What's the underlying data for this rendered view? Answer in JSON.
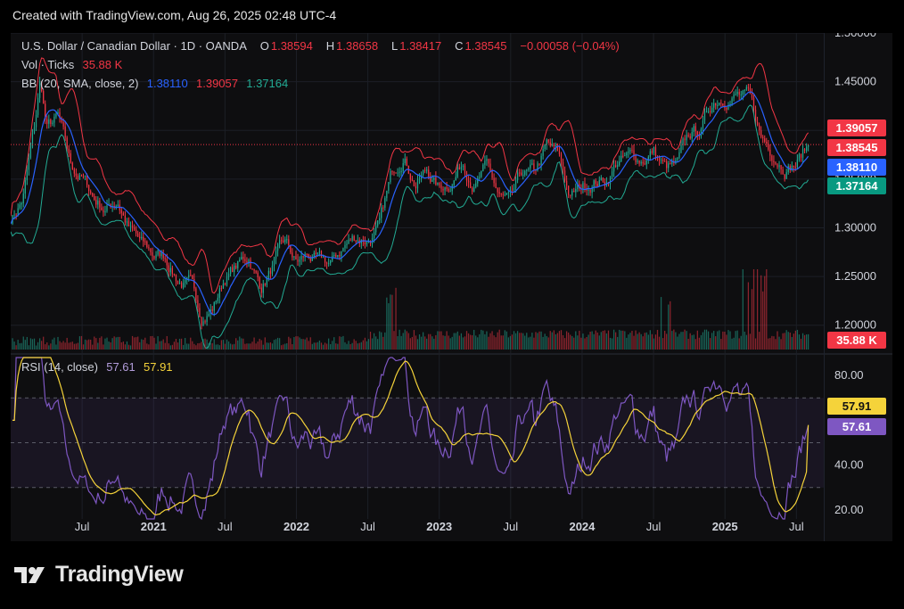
{
  "header": {
    "text": "Created with TradingView.com, Aug 26, 2025 02:48 UTC-4"
  },
  "legend": {
    "symbol": "U.S. Dollar / Canadian Dollar · 1D · OANDA",
    "o_label": "O",
    "o_value": "1.38594",
    "h_label": "H",
    "h_value": "1.38658",
    "l_label": "L",
    "l_value": "1.38417",
    "c_label": "C",
    "c_value": "1.38545",
    "change": "−0.00058 (−0.04%)",
    "vol_label": "Vol · Ticks",
    "vol_value": "35.88 K",
    "bb_label": "BB (20, SMA, close, 2)",
    "bb_basis": "1.38110",
    "bb_upper": "1.39057",
    "bb_lower": "1.37164",
    "rsi_label": "RSI (14, close)",
    "rsi_value": "57.61",
    "rsi_ma": "57.91"
  },
  "badges": {
    "bb_upper": "1.39057",
    "close": "1.38545",
    "bb_basis": "1.38110",
    "bb_lower": "1.37164",
    "volume": "35.88 K",
    "rsi_ma": "57.91",
    "rsi": "57.61"
  },
  "colors": {
    "up": "#22ab94",
    "down": "#f23645",
    "bb_upper": "#f23645",
    "bb_basis": "#2962ff",
    "bb_lower": "#22ab94",
    "rsi": "#7e57c2",
    "rsi_ma": "#f5d33a"
  },
  "brand": {
    "name": "TradingView"
  },
  "chart_data": [
    {
      "type": "line",
      "title": "U.S. Dollar / Canadian Dollar · 1D · OANDA",
      "y_ticks": [
        "1.50000",
        "1.45000",
        "1.40000",
        "1.35000",
        "1.30000",
        "1.25000",
        "1.20000"
      ],
      "y_tick_values": [
        1.5,
        1.45,
        1.4,
        1.35,
        1.3,
        1.25,
        1.2
      ],
      "ylim": [
        1.175,
        1.5
      ],
      "x_ticks": [
        "Jul",
        "2021",
        "Jul",
        "2022",
        "Jul",
        "2023",
        "Jul",
        "2024",
        "Jul",
        "2025",
        "Jul"
      ],
      "x_tick_dates": [
        "2020-07",
        "2021-01",
        "2021-07",
        "2022-01",
        "2022-07",
        "2023-01",
        "2023-07",
        "2024-01",
        "2024-07",
        "2025-01",
        "2025-07"
      ],
      "x_range": [
        "2020-01",
        "2025-09"
      ],
      "price_path": [
        [
          "2020-01",
          1.31
        ],
        [
          "2020-02",
          1.33
        ],
        [
          "2020-03",
          1.4
        ],
        [
          "2020-03",
          1.45
        ],
        [
          "2020-04",
          1.4
        ],
        [
          "2020-05",
          1.41
        ],
        [
          "2020-06",
          1.36
        ],
        [
          "2020-07",
          1.35
        ],
        [
          "2020-08",
          1.33
        ],
        [
          "2020-09",
          1.32
        ],
        [
          "2020-10",
          1.33
        ],
        [
          "2020-11",
          1.3
        ],
        [
          "2020-12",
          1.28
        ],
        [
          "2021-01",
          1.27
        ],
        [
          "2021-02",
          1.27
        ],
        [
          "2021-03",
          1.25
        ],
        [
          "2021-04",
          1.24
        ],
        [
          "2021-05",
          1.21
        ],
        [
          "2021-06",
          1.22
        ],
        [
          "2021-07",
          1.25
        ],
        [
          "2021-08",
          1.26
        ],
        [
          "2021-09",
          1.27
        ],
        [
          "2021-10",
          1.24
        ],
        [
          "2021-11",
          1.26
        ],
        [
          "2021-12",
          1.28
        ],
        [
          "2022-01",
          1.26
        ],
        [
          "2022-02",
          1.27
        ],
        [
          "2022-03",
          1.26
        ],
        [
          "2022-04",
          1.26
        ],
        [
          "2022-05",
          1.28
        ],
        [
          "2022-06",
          1.29
        ],
        [
          "2022-07",
          1.29
        ],
        [
          "2022-08",
          1.3
        ],
        [
          "2022-09",
          1.35
        ],
        [
          "2022-10",
          1.38
        ],
        [
          "2022-11",
          1.35
        ],
        [
          "2022-12",
          1.36
        ],
        [
          "2023-01",
          1.34
        ],
        [
          "2023-02",
          1.35
        ],
        [
          "2023-03",
          1.37
        ],
        [
          "2023-04",
          1.35
        ],
        [
          "2023-05",
          1.36
        ],
        [
          "2023-06",
          1.33
        ],
        [
          "2023-07",
          1.32
        ],
        [
          "2023-08",
          1.35
        ],
        [
          "2023-09",
          1.35
        ],
        [
          "2023-10",
          1.38
        ],
        [
          "2023-11",
          1.37
        ],
        [
          "2023-12",
          1.33
        ],
        [
          "2024-01",
          1.34
        ],
        [
          "2024-02",
          1.35
        ],
        [
          "2024-03",
          1.35
        ],
        [
          "2024-04",
          1.37
        ],
        [
          "2024-05",
          1.37
        ],
        [
          "2024-06",
          1.37
        ],
        [
          "2024-07",
          1.38
        ],
        [
          "2024-08",
          1.36
        ],
        [
          "2024-09",
          1.36
        ],
        [
          "2024-10",
          1.39
        ],
        [
          "2024-11",
          1.4
        ],
        [
          "2024-12",
          1.43
        ],
        [
          "2025-01",
          1.44
        ],
        [
          "2025-02",
          1.44
        ],
        [
          "2025-03",
          1.43
        ],
        [
          "2025-04",
          1.39
        ],
        [
          "2025-05",
          1.38
        ],
        [
          "2025-06",
          1.37
        ],
        [
          "2025-07",
          1.37
        ],
        [
          "2025-08",
          1.385
        ]
      ]
    },
    {
      "type": "bar",
      "title": "Vol · Ticks",
      "last_value": "35.88 K",
      "spikes": [
        [
          "2022-09",
          "medium"
        ],
        [
          "2024-08",
          "medium"
        ],
        [
          "2025-03",
          "high"
        ],
        [
          "2025-04",
          "high"
        ]
      ]
    },
    {
      "type": "line",
      "title": "RSI (14, close)",
      "y_ticks": [
        "80.00",
        "40.00",
        "20.00"
      ],
      "y_tick_values": [
        80,
        40,
        20
      ],
      "ylim": [
        16,
        88
      ],
      "bands": [
        70,
        50,
        30
      ],
      "last_rsi": 57.61,
      "last_ma": 57.91
    }
  ]
}
